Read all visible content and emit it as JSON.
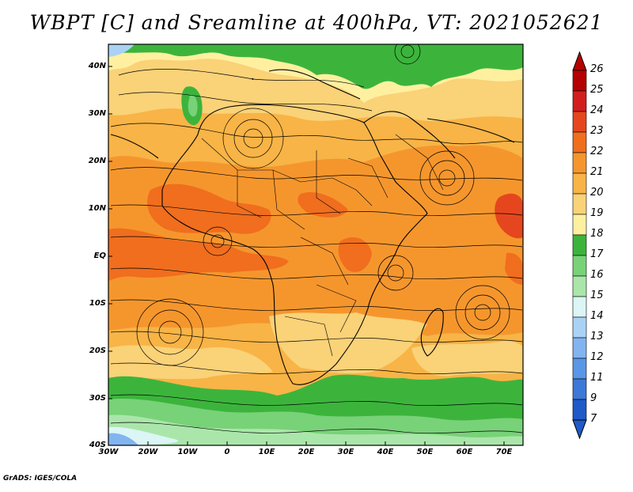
{
  "title": "WBPT [C] and Sreamline at 400hPa, VT: 2021052621",
  "credit": "GrADS: IGES/COLA",
  "map": {
    "lat_labels": [
      "40N",
      "30N",
      "20N",
      "10N",
      "EQ",
      "10S",
      "20S",
      "30S",
      "40S"
    ],
    "lon_labels": [
      "30W",
      "20W",
      "10W",
      "0",
      "10E",
      "20E",
      "30E",
      "40E",
      "50E",
      "60E",
      "70E"
    ]
  },
  "colorbar": {
    "labels": [
      "26",
      "25",
      "24",
      "23",
      "22",
      "21",
      "20",
      "19",
      "18",
      "17",
      "16",
      "15",
      "14",
      "13",
      "12",
      "11",
      "9",
      "7"
    ],
    "colors": [
      "#b40000",
      "#d21e1e",
      "#e6461e",
      "#f06e1e",
      "#f5962d",
      "#f8b446",
      "#fad278",
      "#fff0a0",
      "#3cb43c",
      "#78d278",
      "#aae6aa",
      "#dcf5f5",
      "#aad2f5",
      "#82b4f0",
      "#5a96e6",
      "#3c78d7",
      "#1e5ac8"
    ]
  }
}
